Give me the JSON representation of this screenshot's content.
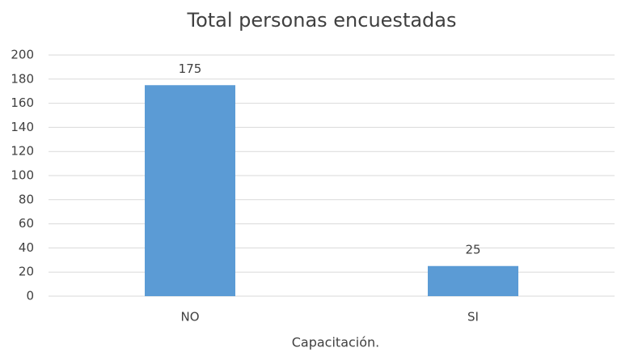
{
  "chart_data": {
    "type": "bar",
    "title": "Total personas encuestadas",
    "x_label": "Capacitación.",
    "categories": [
      "NO",
      "SI"
    ],
    "values": [
      175,
      25
    ],
    "color": "#5b9bd5",
    "ylim": [
      0,
      200
    ],
    "yticks": [
      0,
      20,
      40,
      60,
      80,
      100,
      120,
      140,
      160,
      180,
      200
    ],
    "grid": true
  }
}
